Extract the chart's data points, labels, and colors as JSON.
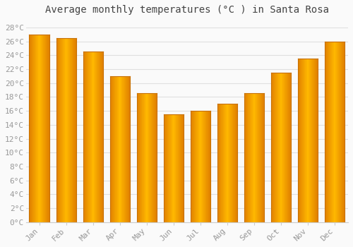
{
  "title": "Average monthly temperatures (°C ) in Santa Rosa",
  "months": [
    "Jan",
    "Feb",
    "Mar",
    "Apr",
    "May",
    "Jun",
    "Jul",
    "Aug",
    "Sep",
    "Oct",
    "Nov",
    "Dec"
  ],
  "values": [
    27.0,
    26.5,
    24.5,
    21.0,
    18.5,
    15.5,
    16.0,
    17.0,
    18.5,
    21.5,
    23.5,
    26.0
  ],
  "bar_color_center": "#FFB800",
  "bar_color_edge": "#E08000",
  "bar_color_left": "#E89000",
  "ylim": [
    0,
    29
  ],
  "yticks": [
    0,
    2,
    4,
    6,
    8,
    10,
    12,
    14,
    16,
    18,
    20,
    22,
    24,
    26,
    28
  ],
  "background_color": "#FAFAFA",
  "plot_bg_color": "#FAFAFA",
  "grid_color": "#E0E0E0",
  "title_fontsize": 10,
  "tick_fontsize": 8,
  "tick_color": "#999999",
  "bar_width": 0.75
}
